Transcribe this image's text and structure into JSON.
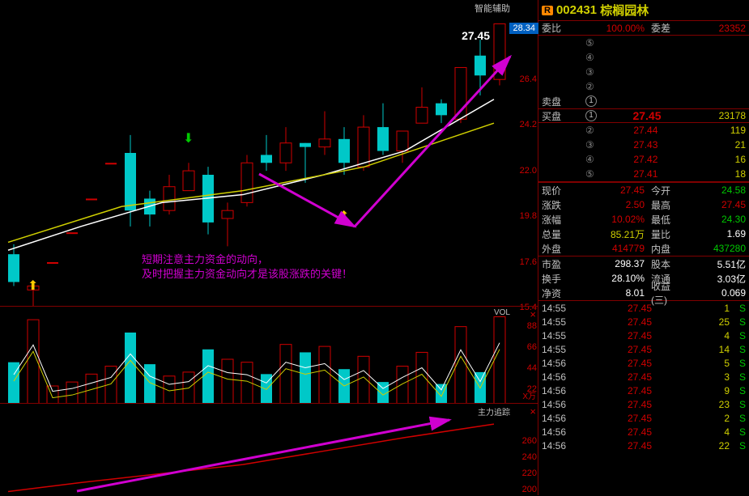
{
  "stock": {
    "code": "002431",
    "name": "棕榈园林",
    "badge": "R"
  },
  "topRow": {
    "weibiLabel": "委比",
    "weibiVal": "100.00%",
    "weichaLabel": "委差",
    "weichaVal": "23352"
  },
  "askLabel": "卖盘",
  "bidLabel": "买盘",
  "asks": [
    {
      "n": "⑤"
    },
    {
      "n": "④"
    },
    {
      "n": "③"
    },
    {
      "n": "②"
    },
    {
      "n": "①"
    }
  ],
  "bids": [
    {
      "n": "①",
      "p": "27.45",
      "v": "23178"
    },
    {
      "n": "②",
      "p": "27.44",
      "v": "119"
    },
    {
      "n": "③",
      "p": "27.43",
      "v": "21"
    },
    {
      "n": "④",
      "p": "27.42",
      "v": "16"
    },
    {
      "n": "⑤",
      "p": "27.41",
      "v": "18"
    }
  ],
  "quotes": [
    {
      "l1": "现价",
      "v1": "27.45",
      "c1": "#d00000",
      "l2": "今开",
      "v2": "24.58",
      "c2": "#00c800"
    },
    {
      "l1": "涨跌",
      "v1": "2.50",
      "c1": "#d00000",
      "l2": "最高",
      "v2": "27.45",
      "c2": "#d00000"
    },
    {
      "l1": "涨幅",
      "v1": "10.02%",
      "c1": "#d00000",
      "l2": "最低",
      "v2": "24.30",
      "c2": "#00c800"
    },
    {
      "l1": "总量",
      "v1": "85.21万",
      "c1": "#d0d000",
      "l2": "量比",
      "v2": "1.69",
      "c2": "#ffffff"
    },
    {
      "l1": "外盘",
      "v1": "414779",
      "c1": "#d00000",
      "l2": "内盘",
      "v2": "437280",
      "c2": "#00c800"
    }
  ],
  "stats": [
    {
      "l1": "市盈",
      "v1": "298.37",
      "l2": "股本",
      "v2": "5.51亿"
    },
    {
      "l1": "换手",
      "v1": "28.10%",
      "l2": "流通",
      "v2": "3.03亿"
    },
    {
      "l1": "净资",
      "v1": "8.01",
      "l2": "收益(三)",
      "v2": "0.069"
    }
  ],
  "ticks": [
    {
      "t": "14:55",
      "p": "27.45",
      "v": "1",
      "s": "S"
    },
    {
      "t": "14:55",
      "p": "27.45",
      "v": "25",
      "s": "S"
    },
    {
      "t": "14:55",
      "p": "27.45",
      "v": "4",
      "s": "S"
    },
    {
      "t": "14:55",
      "p": "27.45",
      "v": "14",
      "s": "S"
    },
    {
      "t": "14:56",
      "p": "27.45",
      "v": "5",
      "s": "S"
    },
    {
      "t": "14:56",
      "p": "27.45",
      "v": "3",
      "s": "S"
    },
    {
      "t": "14:56",
      "p": "27.45",
      "v": "9",
      "s": "S"
    },
    {
      "t": "14:56",
      "p": "27.45",
      "v": "23",
      "s": "S"
    },
    {
      "t": "14:56",
      "p": "27.45",
      "v": "2",
      "s": "S"
    },
    {
      "t": "14:56",
      "p": "27.45",
      "v": "4",
      "s": "S"
    },
    {
      "t": "14:56",
      "p": "27.45",
      "v": "22",
      "s": "S"
    }
  ],
  "chart": {
    "currentPriceLabel": "27.45",
    "priceBox": "28.34",
    "smartLabel": "智能辅助",
    "volLabel": "VOL",
    "trackLabel": "主力追踪",
    "xwanLabel": "X万",
    "annotation1": "短期注意主力资金的动向，",
    "annotation2": "及时把握主力资金动向才是该股涨跌的关键！",
    "yticks": [
      {
        "v": "26.4",
        "y": 92
      },
      {
        "v": "24.2",
        "y": 148
      },
      {
        "v": "22.0",
        "y": 205
      },
      {
        "v": "19.8",
        "y": 261
      },
      {
        "v": "17.6",
        "y": 318
      },
      {
        "v": "15.4",
        "y": 374
      }
    ],
    "volTicks": [
      {
        "v": "88",
        "y": 18
      },
      {
        "v": "66",
        "y": 44
      },
      {
        "v": "44",
        "y": 70
      },
      {
        "v": "22",
        "y": 96
      }
    ],
    "trkTicks": [
      {
        "v": "260",
        "y": 40
      },
      {
        "v": "240",
        "y": 60
      },
      {
        "v": "220",
        "y": 80
      },
      {
        "v": "200",
        "y": 100
      }
    ],
    "candles": [
      {
        "x": 10,
        "o": 15.8,
        "c": 14.4,
        "h": 16.3,
        "l": 14.2,
        "up": false
      },
      {
        "x": 34,
        "o": 14.0,
        "c": 14.2,
        "h": 14.3,
        "l": 12.8,
        "up": true
      },
      {
        "x": 58,
        "o": 15.4,
        "c": 15.4,
        "h": 15.4,
        "l": 15.4,
        "up": true,
        "doji": true
      },
      {
        "x": 82,
        "o": 16.9,
        "c": 16.9,
        "h": 16.9,
        "l": 16.9,
        "up": true,
        "doji": true
      },
      {
        "x": 106,
        "o": 18.6,
        "c": 18.6,
        "h": 18.6,
        "l": 18.6,
        "up": true,
        "doji": true
      },
      {
        "x": 130,
        "o": 20.4,
        "c": 20.4,
        "h": 20.4,
        "l": 20.4,
        "up": true,
        "doji": true
      },
      {
        "x": 154,
        "o": 20.9,
        "c": 18.0,
        "h": 21.8,
        "l": 17.2,
        "up": false
      },
      {
        "x": 178,
        "o": 18.6,
        "c": 17.8,
        "h": 19.0,
        "l": 17.2,
        "up": false
      },
      {
        "x": 202,
        "o": 18.0,
        "c": 19.2,
        "h": 19.8,
        "l": 17.8,
        "up": true
      },
      {
        "x": 226,
        "o": 19.0,
        "c": 20.0,
        "h": 20.4,
        "l": 19.0,
        "up": true
      },
      {
        "x": 250,
        "o": 19.8,
        "c": 17.4,
        "h": 20.2,
        "l": 16.8,
        "up": false
      },
      {
        "x": 274,
        "o": 17.6,
        "c": 18.0,
        "h": 18.4,
        "l": 16.2,
        "up": true
      },
      {
        "x": 298,
        "o": 18.4,
        "c": 20.4,
        "h": 20.8,
        "l": 18.2,
        "up": true
      },
      {
        "x": 322,
        "o": 20.8,
        "c": 20.4,
        "h": 21.8,
        "l": 20.0,
        "up": false
      },
      {
        "x": 346,
        "o": 20.4,
        "c": 21.4,
        "h": 22.2,
        "l": 20.0,
        "up": true
      },
      {
        "x": 370,
        "o": 21.4,
        "c": 21.2,
        "h": 21.4,
        "l": 19.4,
        "up": false
      },
      {
        "x": 394,
        "o": 21.2,
        "c": 21.6,
        "h": 23.0,
        "l": 20.8,
        "up": true
      },
      {
        "x": 418,
        "o": 21.6,
        "c": 20.4,
        "h": 22.2,
        "l": 19.8,
        "up": false
      },
      {
        "x": 442,
        "o": 20.2,
        "c": 22.2,
        "h": 22.8,
        "l": 20.0,
        "up": true
      },
      {
        "x": 466,
        "o": 22.2,
        "c": 21.0,
        "h": 23.4,
        "l": 20.8,
        "up": false
      },
      {
        "x": 490,
        "o": 21.0,
        "c": 22.0,
        "h": 22.0,
        "l": 20.4,
        "up": true
      },
      {
        "x": 514,
        "o": 22.4,
        "c": 23.2,
        "h": 24.2,
        "l": 22.4,
        "up": true
      },
      {
        "x": 538,
        "o": 23.4,
        "c": 22.8,
        "h": 23.6,
        "l": 22.4,
        "up": false
      },
      {
        "x": 562,
        "o": 22.6,
        "c": 25.2,
        "h": 25.2,
        "l": 22.4,
        "up": true
      },
      {
        "x": 586,
        "o": 25.8,
        "c": 24.8,
        "h": 26.6,
        "l": 23.8,
        "up": false
      },
      {
        "x": 610,
        "o": 24.6,
        "c": 27.4,
        "h": 27.4,
        "l": 24.3,
        "up": true
      }
    ],
    "ma1": [
      [
        10,
        16.0
      ],
      [
        100,
        17.2
      ],
      [
        200,
        18.4
      ],
      [
        300,
        18.8
      ],
      [
        400,
        19.8
      ],
      [
        500,
        21.0
      ],
      [
        610,
        23.6
      ]
    ],
    "ma2": [
      [
        10,
        16.4
      ],
      [
        150,
        18.2
      ],
      [
        300,
        19.0
      ],
      [
        450,
        20.2
      ],
      [
        610,
        22.4
      ]
    ],
    "volumes": [
      {
        "x": 10,
        "v": 42,
        "up": false
      },
      {
        "x": 34,
        "v": 85,
        "up": true
      },
      {
        "x": 58,
        "v": 18,
        "up": true
      },
      {
        "x": 82,
        "v": 22,
        "up": true
      },
      {
        "x": 106,
        "v": 30,
        "up": true
      },
      {
        "x": 130,
        "v": 38,
        "up": true
      },
      {
        "x": 154,
        "v": 72,
        "up": false
      },
      {
        "x": 178,
        "v": 40,
        "up": false
      },
      {
        "x": 202,
        "v": 28,
        "up": true
      },
      {
        "x": 226,
        "v": 32,
        "up": true
      },
      {
        "x": 250,
        "v": 55,
        "up": false
      },
      {
        "x": 274,
        "v": 45,
        "up": true
      },
      {
        "x": 298,
        "v": 42,
        "up": true
      },
      {
        "x": 322,
        "v": 30,
        "up": false
      },
      {
        "x": 346,
        "v": 60,
        "up": true
      },
      {
        "x": 370,
        "v": 52,
        "up": false
      },
      {
        "x": 394,
        "v": 58,
        "up": true
      },
      {
        "x": 418,
        "v": 35,
        "up": false
      },
      {
        "x": 442,
        "v": 48,
        "up": true
      },
      {
        "x": 466,
        "v": 22,
        "up": false
      },
      {
        "x": 490,
        "v": 38,
        "up": true
      },
      {
        "x": 514,
        "v": 52,
        "up": true
      },
      {
        "x": 538,
        "v": 20,
        "up": false
      },
      {
        "x": 562,
        "v": 78,
        "up": true
      },
      {
        "x": 586,
        "v": 32,
        "up": false
      },
      {
        "x": 610,
        "v": 88,
        "up": true
      }
    ],
    "track": [
      [
        10,
        195
      ],
      [
        100,
        205
      ],
      [
        200,
        215
      ],
      [
        300,
        225
      ],
      [
        400,
        240
      ],
      [
        500,
        255
      ],
      [
        610,
        270
      ]
    ],
    "markers": [
      {
        "x": 34,
        "y": 358,
        "glyph": "⬆",
        "color": "#ffcc00"
      },
      {
        "x": 226,
        "y": 176,
        "glyph": "⬇",
        "color": "#00c800"
      },
      {
        "x": 418,
        "y": 272,
        "glyph": "⬆",
        "color": "#ffcc00"
      }
    ],
    "colors": {
      "up": "#d00000",
      "down": "#00c8c8",
      "ma1": "#ffffff",
      "ma2": "#d0d000",
      "ann": "#d000d0",
      "track": "#d00000"
    }
  }
}
